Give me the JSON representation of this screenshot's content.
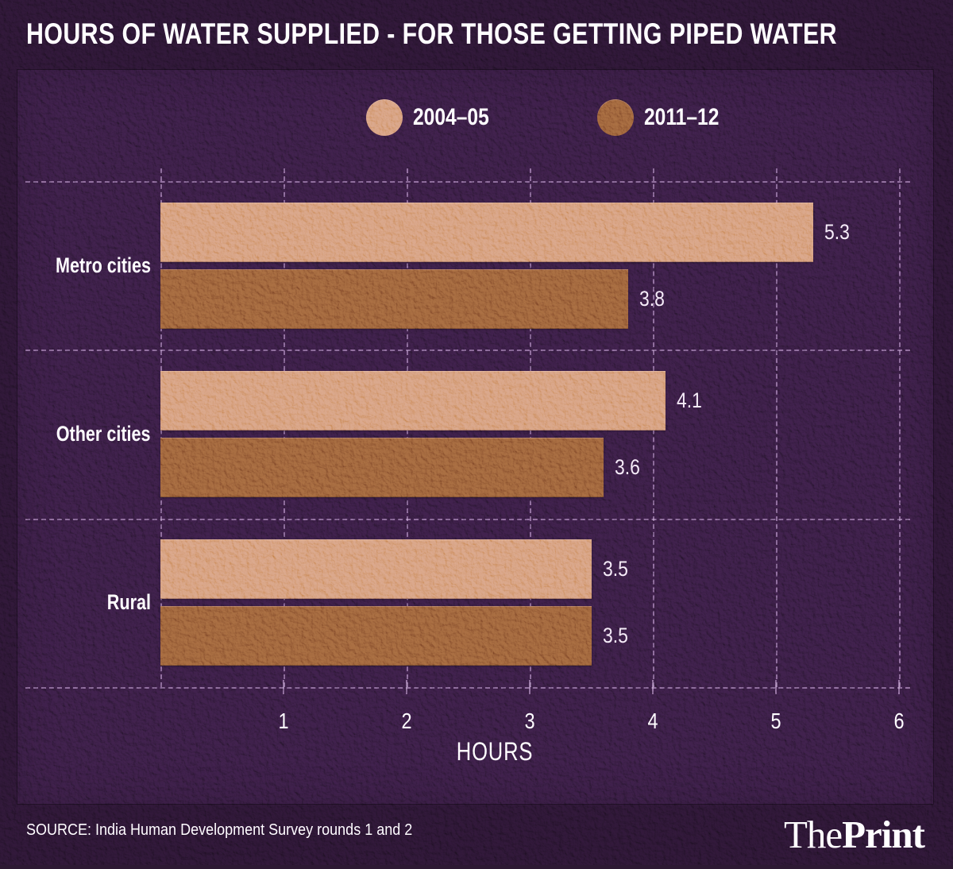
{
  "title": "HOURS OF WATER SUPPLIED - FOR THOSE GETTING PIPED WATER",
  "legend": {
    "items": [
      {
        "label": "2004–05",
        "color": "#d7aa7b"
      },
      {
        "label": "2011–12",
        "color": "#a0713a"
      }
    ]
  },
  "chart_data": {
    "type": "bar",
    "orientation": "horizontal",
    "title": "HOURS OF WATER SUPPLIED - FOR THOSE GETTING PIPED WATER",
    "categories": [
      "Metro cities",
      "Other cities",
      "Rural"
    ],
    "series": [
      {
        "name": "2004–05",
        "color": "#d7aa7b",
        "values": [
          5.3,
          4.1,
          3.5
        ]
      },
      {
        "name": "2011–12",
        "color": "#a0713a",
        "values": [
          3.8,
          3.6,
          3.5
        ]
      }
    ],
    "xlabel": "HOURS",
    "ylabel": "",
    "xlim": [
      0,
      6
    ],
    "xticks": [
      1,
      2,
      3,
      4,
      5,
      6
    ],
    "grid": "dashed",
    "legend_position": "top",
    "value_labels": "outside-end"
  },
  "footer": {
    "source": "SOURCE: India Human Development Survey rounds 1 and 2",
    "logo": {
      "the": "The",
      "print": "Print"
    }
  },
  "colors": {
    "background": "#2d1933",
    "panel": "#3b2244",
    "bar_2004_05": "#d7aa7b",
    "bar_2011_12": "#a0713a",
    "gridline": "#d8c8e2",
    "text": "#ffffff"
  }
}
